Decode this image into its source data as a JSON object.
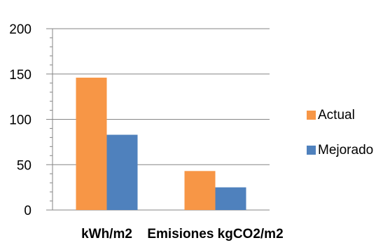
{
  "chart_data": {
    "type": "bar",
    "categories": [
      "kWh/m2",
      "Emisiones kgCO2/m2"
    ],
    "series": [
      {
        "name": "Actual",
        "values": [
          146,
          43
        ],
        "color": "#F79646"
      },
      {
        "name": "Mejorado",
        "values": [
          83,
          25
        ],
        "color": "#4F81BD"
      }
    ],
    "y_ticks": [
      0,
      50,
      100,
      150,
      200
    ],
    "ylim": [
      0,
      200
    ],
    "grid": true,
    "legend_position": "right",
    "title": "",
    "xlabel": "",
    "ylabel": ""
  }
}
